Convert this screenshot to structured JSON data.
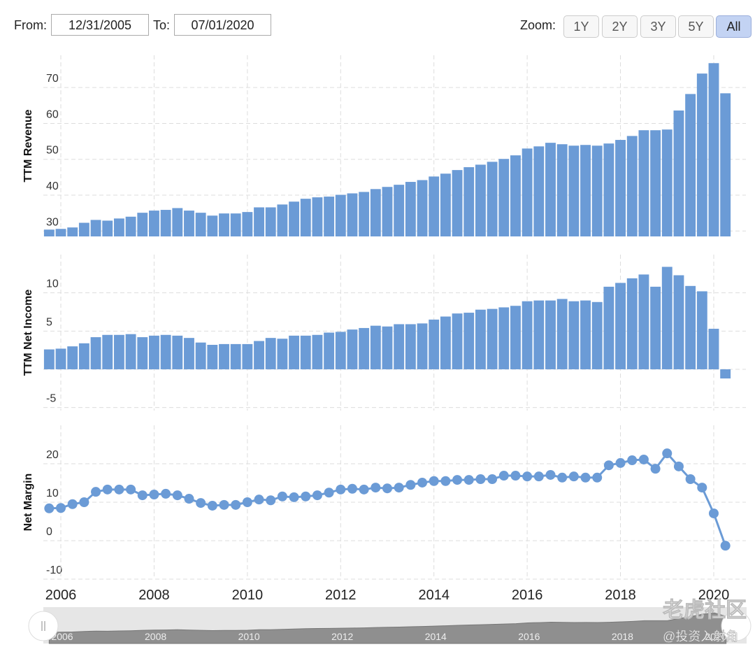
{
  "range_selector": {
    "from_label": "From:",
    "from": "12/31/2005",
    "to_label": "To:",
    "to": "07/01/2020",
    "zoom_label": "Zoom:",
    "zoom_buttons": [
      "1Y",
      "2Y",
      "3Y",
      "5Y",
      "All"
    ],
    "active": "All"
  },
  "watermark": {
    "brand": "老虎社区",
    "handle": "@投资入射角"
  },
  "chart_data": [
    {
      "type": "bar",
      "y_label": "TTM Revenue",
      "color": "#6b9bd6",
      "grid": true,
      "x": [
        2005.75,
        2006,
        2006.25,
        2006.5,
        2006.75,
        2007,
        2007.25,
        2007.5,
        2007.75,
        2008,
        2008.25,
        2008.5,
        2008.75,
        2009,
        2009.25,
        2009.5,
        2009.75,
        2010,
        2010.25,
        2010.5,
        2010.75,
        2011,
        2011.25,
        2011.5,
        2011.75,
        2012,
        2012.25,
        2012.5,
        2012.75,
        2013,
        2013.25,
        2013.5,
        2013.75,
        2014,
        2014.25,
        2014.5,
        2014.75,
        2015,
        2015.25,
        2015.5,
        2015.75,
        2016,
        2016.25,
        2016.5,
        2016.75,
        2017,
        2017.25,
        2017.5,
        2017.75,
        2018,
        2018.25,
        2018.5,
        2018.75,
        2019,
        2019.25,
        2019.5,
        2019.75,
        2020,
        2020.25
      ],
      "values": [
        30.4,
        30.6,
        31.0,
        32.3,
        33.1,
        32.9,
        33.5,
        34.0,
        35.1,
        35.7,
        35.9,
        36.4,
        35.7,
        35.1,
        34.3,
        34.9,
        34.9,
        35.3,
        36.6,
        36.6,
        37.4,
        38.2,
        39.0,
        39.4,
        39.6,
        40.1,
        40.5,
        40.9,
        41.7,
        42.3,
        42.9,
        43.7,
        44.2,
        45.2,
        46.0,
        47.0,
        47.8,
        48.5,
        49.3,
        50.1,
        51.1,
        53.0,
        53.6,
        54.6,
        54.2,
        53.8,
        54.0,
        53.8,
        54.4,
        55.4,
        56.5,
        58.1,
        58.1,
        58.3,
        63.6,
        68.2,
        73.9,
        76.8,
        68.4
      ],
      "xlim": [
        2005.625,
        2020.39
      ],
      "xticks": [
        2006,
        2008,
        2010,
        2012,
        2014,
        2016,
        2018,
        2020
      ],
      "ylim": [
        28.5,
        79
      ],
      "yticks": [
        30,
        40,
        50,
        60,
        70
      ]
    },
    {
      "type": "bar",
      "y_label": "TTM Net Income",
      "color": "#6b9bd6",
      "grid": true,
      "x": [
        2005.75,
        2006,
        2006.25,
        2006.5,
        2006.75,
        2007,
        2007.25,
        2007.5,
        2007.75,
        2008,
        2008.25,
        2008.5,
        2008.75,
        2009,
        2009.25,
        2009.5,
        2009.75,
        2010,
        2010.25,
        2010.5,
        2010.75,
        2011,
        2011.25,
        2011.5,
        2011.75,
        2012,
        2012.25,
        2012.5,
        2012.75,
        2013,
        2013.25,
        2013.5,
        2013.75,
        2014,
        2014.25,
        2014.5,
        2014.75,
        2015,
        2015.25,
        2015.5,
        2015.75,
        2016,
        2016.25,
        2016.5,
        2016.75,
        2017,
        2017.25,
        2017.5,
        2017.75,
        2018,
        2018.25,
        2018.5,
        2018.75,
        2019,
        2019.25,
        2019.5,
        2019.75,
        2020,
        2020.25
      ],
      "values": [
        2.6,
        2.7,
        3.0,
        3.4,
        4.2,
        4.5,
        4.5,
        4.6,
        4.2,
        4.4,
        4.5,
        4.4,
        4.1,
        3.5,
        3.2,
        3.3,
        3.3,
        3.3,
        3.7,
        4.1,
        4.0,
        4.4,
        4.4,
        4.5,
        4.8,
        4.9,
        5.2,
        5.4,
        5.7,
        5.6,
        5.9,
        5.9,
        6.0,
        6.5,
        6.9,
        7.3,
        7.4,
        7.8,
        7.9,
        8.1,
        8.3,
        8.9,
        9.0,
        9.0,
        9.2,
        8.9,
        9.0,
        8.8,
        10.8,
        11.3,
        11.9,
        12.4,
        10.8,
        13.4,
        12.3,
        10.9,
        10.2,
        5.3,
        -1.2
      ],
      "xlim": [
        2005.625,
        2020.39
      ],
      "xticks": [
        2006,
        2008,
        2010,
        2012,
        2014,
        2016,
        2018,
        2020
      ],
      "ylim": [
        -5.4,
        15
      ],
      "yticks": [
        -5,
        0,
        5,
        10
      ]
    },
    {
      "type": "line",
      "y_label": "Net Margin",
      "color": "#6b9bd6",
      "grid": true,
      "markers": true,
      "x": [
        2005.75,
        2006,
        2006.25,
        2006.5,
        2006.75,
        2007,
        2007.25,
        2007.5,
        2007.75,
        2008,
        2008.25,
        2008.5,
        2008.75,
        2009,
        2009.25,
        2009.5,
        2009.75,
        2010,
        2010.25,
        2010.5,
        2010.75,
        2011,
        2011.25,
        2011.5,
        2011.75,
        2012,
        2012.25,
        2012.5,
        2012.75,
        2013,
        2013.25,
        2013.5,
        2013.75,
        2014,
        2014.25,
        2014.5,
        2014.75,
        2015,
        2015.25,
        2015.5,
        2015.75,
        2016,
        2016.25,
        2016.5,
        2016.75,
        2017,
        2017.25,
        2017.5,
        2017.75,
        2018,
        2018.25,
        2018.5,
        2018.75,
        2019,
        2019.25,
        2019.5,
        2019.75,
        2020,
        2020.25
      ],
      "values": [
        8.4,
        8.5,
        9.5,
        10.0,
        12.7,
        13.3,
        13.3,
        13.3,
        11.8,
        12.0,
        12.2,
        11.8,
        10.9,
        9.8,
        9.1,
        9.3,
        9.3,
        10.0,
        10.7,
        10.5,
        11.5,
        11.3,
        11.5,
        11.8,
        12.5,
        13.3,
        13.5,
        13.3,
        13.8,
        13.6,
        13.8,
        14.5,
        15.1,
        15.5,
        15.5,
        15.8,
        15.8,
        16.0,
        16.0,
        16.9,
        16.9,
        16.7,
        16.7,
        17.1,
        16.4,
        16.7,
        16.4,
        16.4,
        19.6,
        20.2,
        20.9,
        21.1,
        18.7,
        22.7,
        19.3,
        16.0,
        13.8,
        7.1,
        -1.3
      ],
      "xlim": [
        2005.625,
        2020.39
      ],
      "xticks": [
        2006,
        2008,
        2010,
        2012,
        2014,
        2016,
        2018,
        2020
      ],
      "ylim": [
        -10,
        30
      ],
      "yticks": [
        -10,
        0,
        10,
        20
      ]
    }
  ]
}
